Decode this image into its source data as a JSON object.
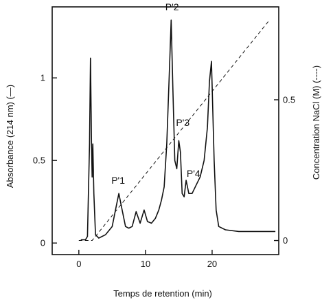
{
  "chart_data": {
    "type": "line",
    "xlabel": "Temps de retention (min)",
    "ylabel_left": "Absorbance (214 nm)  (—)",
    "ylabel_right": "Concentration NaCl (M) (----)",
    "xlim": [
      -4,
      30
    ],
    "ylim_left": [
      -0.07,
      1.43
    ],
    "ylim_right": [
      -0.05,
      0.83
    ],
    "x_ticks": [
      {
        "value": 0,
        "label": "0"
      },
      {
        "value": 10,
        "label": "10"
      },
      {
        "value": 20,
        "label": "20"
      }
    ],
    "y_ticks_left": [
      {
        "value": 0,
        "label": "0"
      },
      {
        "value": 0.5,
        "label": "0.5"
      },
      {
        "value": 1,
        "label": "1"
      }
    ],
    "y_ticks_right": [
      {
        "value": 0,
        "label": "0"
      },
      {
        "value": 0.5,
        "label": "0.5"
      }
    ],
    "series": [
      {
        "axis": "left",
        "style": "solid",
        "points": [
          [
            0.3,
            0.02
          ],
          [
            1.0,
            0.02
          ],
          [
            1.3,
            0.04
          ],
          [
            1.6,
            0.6
          ],
          [
            1.75,
            1.12
          ],
          [
            1.9,
            0.6
          ],
          [
            2.0,
            0.4
          ],
          [
            2.1,
            0.6
          ],
          [
            2.25,
            0.3
          ],
          [
            2.5,
            0.05
          ],
          [
            3.0,
            0.03
          ],
          [
            4.0,
            0.05
          ],
          [
            5.0,
            0.1
          ],
          [
            5.5,
            0.2
          ],
          [
            6.0,
            0.3
          ],
          [
            6.5,
            0.2
          ],
          [
            7.0,
            0.1
          ],
          [
            7.5,
            0.09
          ],
          [
            8.0,
            0.1
          ],
          [
            8.6,
            0.19
          ],
          [
            9.2,
            0.12
          ],
          [
            9.8,
            0.2
          ],
          [
            10.3,
            0.13
          ],
          [
            10.9,
            0.12
          ],
          [
            11.5,
            0.15
          ],
          [
            12.0,
            0.2
          ],
          [
            12.4,
            0.26
          ],
          [
            12.8,
            0.34
          ],
          [
            13.2,
            0.6
          ],
          [
            13.6,
            1.05
          ],
          [
            13.85,
            1.35
          ],
          [
            14.1,
            0.95
          ],
          [
            14.4,
            0.5
          ],
          [
            14.7,
            0.45
          ],
          [
            15.0,
            0.62
          ],
          [
            15.25,
            0.55
          ],
          [
            15.5,
            0.3
          ],
          [
            15.8,
            0.28
          ],
          [
            16.1,
            0.38
          ],
          [
            16.5,
            0.3
          ],
          [
            17.0,
            0.3
          ],
          [
            17.6,
            0.35
          ],
          [
            18.2,
            0.4
          ],
          [
            18.8,
            0.5
          ],
          [
            19.3,
            0.7
          ],
          [
            19.6,
            0.98
          ],
          [
            19.9,
            1.1
          ],
          [
            20.3,
            0.5
          ],
          [
            20.6,
            0.2
          ],
          [
            21.0,
            0.1
          ],
          [
            22.0,
            0.08
          ],
          [
            24.0,
            0.07
          ],
          [
            27.0,
            0.07
          ],
          [
            29.5,
            0.07
          ]
        ]
      },
      {
        "axis": "right",
        "style": "dashed",
        "points": [
          [
            0.0,
            0.0
          ],
          [
            2.0,
            0.0
          ],
          [
            28.5,
            0.78
          ]
        ]
      }
    ],
    "annotations": [
      {
        "text": "P'1",
        "x": 5.9,
        "y": 0.36
      },
      {
        "text": "P'2",
        "x": 14.0,
        "y": 1.41
      },
      {
        "text": "P'3",
        "x": 15.6,
        "y": 0.71
      },
      {
        "text": "P'4",
        "x": 17.2,
        "y": 0.4
      }
    ],
    "grid": false,
    "legend": "none"
  }
}
